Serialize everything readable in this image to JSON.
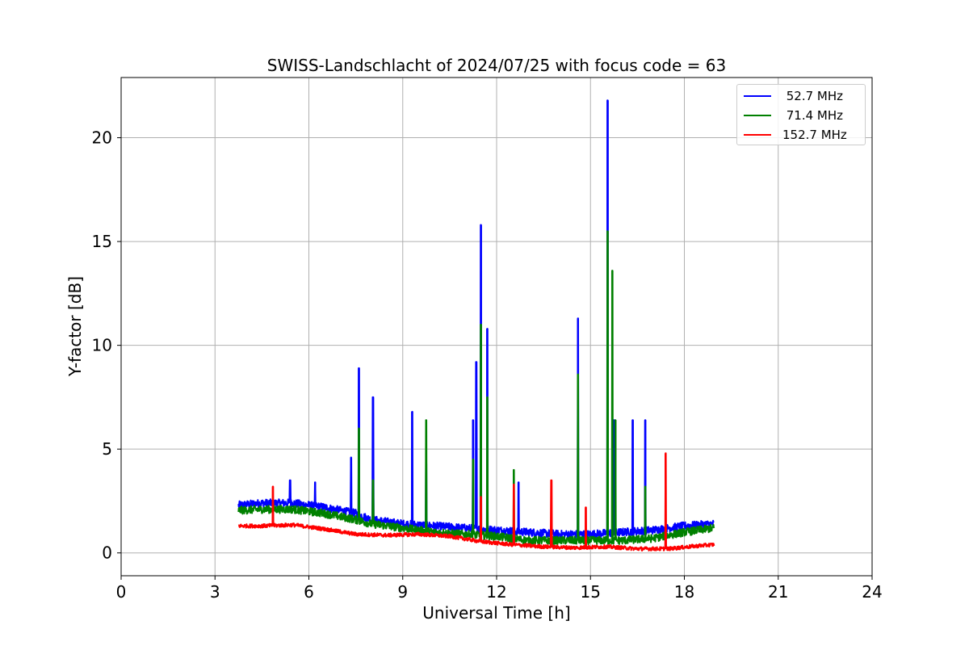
{
  "chart_data": {
    "type": "line",
    "title": "SWISS-Landschlacht of 2024/07/25 with focus code = 63",
    "xlabel": "Universal Time [h]",
    "ylabel": "Y-factor [dB]",
    "xlim": [
      0,
      24
    ],
    "ylim": [
      -1.1,
      22.9
    ],
    "xticks": [
      0,
      3,
      6,
      9,
      12,
      15,
      18,
      21,
      24
    ],
    "yticks": [
      0,
      5,
      10,
      15,
      20
    ],
    "grid": true,
    "legend_position": "top-right",
    "x_range_data": [
      3.75,
      18.95
    ],
    "series": [
      {
        "name": " 52.7 MHz",
        "color": "#0000ff",
        "baseline": [
          [
            3.75,
            2.3
          ],
          [
            4.5,
            2.4
          ],
          [
            5.5,
            2.4
          ],
          [
            6.5,
            2.2
          ],
          [
            7.5,
            1.9
          ],
          [
            8.0,
            1.6
          ],
          [
            9.0,
            1.4
          ],
          [
            10.0,
            1.3
          ],
          [
            11.0,
            1.2
          ],
          [
            12.0,
            1.1
          ],
          [
            13.0,
            1.0
          ],
          [
            14.0,
            0.9
          ],
          [
            15.0,
            0.9
          ],
          [
            16.0,
            1.0
          ],
          [
            17.0,
            1.1
          ],
          [
            18.0,
            1.3
          ],
          [
            18.95,
            1.4
          ]
        ],
        "spikes": [
          [
            5.4,
            3.5
          ],
          [
            6.2,
            3.4
          ],
          [
            7.35,
            4.6
          ],
          [
            7.6,
            8.9
          ],
          [
            8.05,
            7.5
          ],
          [
            9.3,
            6.8
          ],
          [
            9.75,
            4.3
          ],
          [
            11.25,
            6.4
          ],
          [
            11.35,
            9.2
          ],
          [
            11.5,
            15.8
          ],
          [
            11.7,
            10.8
          ],
          [
            12.7,
            3.4
          ],
          [
            14.6,
            11.3
          ],
          [
            15.55,
            21.8
          ],
          [
            15.75,
            6.4
          ],
          [
            16.35,
            6.4
          ],
          [
            16.75,
            6.4
          ]
        ]
      },
      {
        "name": " 71.4 MHz",
        "color": "#008000",
        "baseline": [
          [
            3.75,
            2.05
          ],
          [
            4.5,
            2.1
          ],
          [
            5.5,
            2.1
          ],
          [
            6.5,
            1.9
          ],
          [
            7.5,
            1.6
          ],
          [
            8.0,
            1.4
          ],
          [
            9.0,
            1.2
          ],
          [
            10.0,
            1.0
          ],
          [
            11.0,
            0.9
          ],
          [
            12.0,
            0.8
          ],
          [
            13.0,
            0.6
          ],
          [
            14.0,
            0.6
          ],
          [
            15.0,
            0.6
          ],
          [
            16.0,
            0.6
          ],
          [
            17.0,
            0.7
          ],
          [
            18.0,
            1.0
          ],
          [
            18.95,
            1.2
          ]
        ],
        "spikes": [
          [
            7.6,
            6.0
          ],
          [
            8.05,
            3.5
          ],
          [
            9.75,
            6.4
          ],
          [
            11.25,
            4.5
          ],
          [
            11.5,
            11.0
          ],
          [
            11.7,
            7.5
          ],
          [
            12.55,
            4.0
          ],
          [
            14.6,
            8.6
          ],
          [
            15.55,
            15.5
          ],
          [
            15.7,
            13.6
          ],
          [
            15.8,
            6.4
          ],
          [
            16.75,
            3.2
          ]
        ]
      },
      {
        "name": "152.7 MHz",
        "color": "#ff0000",
        "baseline": [
          [
            3.75,
            1.3
          ],
          [
            4.5,
            1.3
          ],
          [
            5.5,
            1.35
          ],
          [
            6.5,
            1.15
          ],
          [
            7.5,
            0.9
          ],
          [
            8.5,
            0.85
          ],
          [
            9.5,
            0.9
          ],
          [
            10.5,
            0.8
          ],
          [
            11.5,
            0.55
          ],
          [
            12.5,
            0.4
          ],
          [
            13.5,
            0.3
          ],
          [
            14.5,
            0.25
          ],
          [
            15.5,
            0.3
          ],
          [
            16.5,
            0.2
          ],
          [
            17.5,
            0.2
          ],
          [
            18.5,
            0.35
          ],
          [
            18.95,
            0.4
          ]
        ],
        "spikes": [
          [
            4.85,
            3.2
          ],
          [
            11.5,
            2.7
          ],
          [
            12.55,
            3.3
          ],
          [
            13.75,
            3.5
          ],
          [
            14.85,
            2.2
          ],
          [
            17.4,
            4.8
          ]
        ]
      }
    ]
  }
}
